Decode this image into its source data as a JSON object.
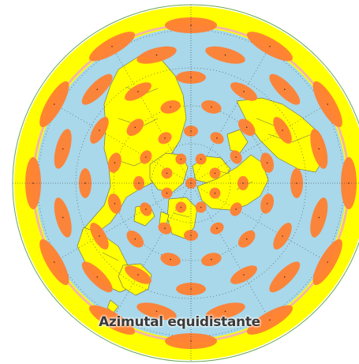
{
  "caption": "Azimutal equidistante",
  "colors": {
    "ocean": "#a8d8ea",
    "land": "#ffff00",
    "border": "#7a7a55",
    "ellipse": "#ff7f32",
    "graticule": "#4a4a4a",
    "outer_ring": "#ffff00",
    "outer_circle": "#6aa84f",
    "inner_band": "#f7b8a8"
  },
  "projection": {
    "type": "azimuthal equidistant",
    "center": "north pole",
    "indicatrix": "Tissot ellipses"
  }
}
